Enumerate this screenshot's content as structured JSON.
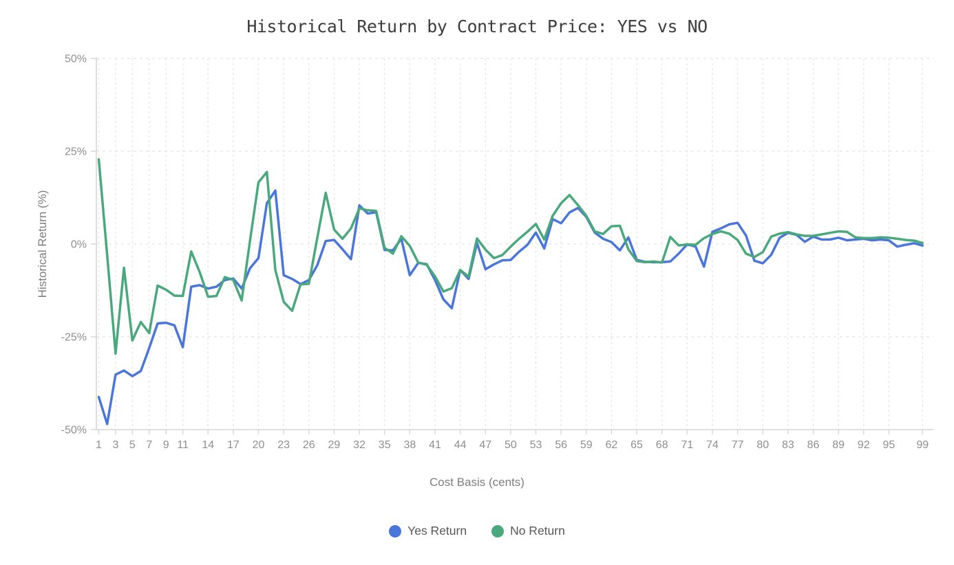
{
  "chart_data": {
    "type": "line",
    "title": "Historical Return by Contract Price: YES vs NO",
    "xlabel": "Cost Basis (cents)",
    "ylabel": "Historical Return (%)",
    "xlim": [
      1,
      99
    ],
    "ylim": [
      -50,
      50
    ],
    "grid": true,
    "legend_position": "bottom",
    "x_tick_labels": [
      1,
      3,
      5,
      7,
      9,
      11,
      14,
      17,
      20,
      23,
      26,
      29,
      32,
      35,
      38,
      41,
      44,
      47,
      50,
      53,
      56,
      59,
      62,
      65,
      68,
      71,
      74,
      77,
      80,
      83,
      86,
      89,
      92,
      95,
      99
    ],
    "y_ticks": [
      {
        "value": 50,
        "label": "50%"
      },
      {
        "value": 25,
        "label": "25%"
      },
      {
        "value": 0,
        "label": "0%"
      },
      {
        "value": -25,
        "label": "-25%"
      },
      {
        "value": -50,
        "label": "-50%"
      }
    ],
    "x": [
      1,
      2,
      3,
      4,
      5,
      6,
      7,
      8,
      9,
      10,
      11,
      12,
      13,
      14,
      15,
      16,
      17,
      18,
      19,
      20,
      21,
      22,
      23,
      24,
      25,
      26,
      27,
      28,
      29,
      30,
      31,
      32,
      33,
      34,
      35,
      36,
      37,
      38,
      39,
      40,
      41,
      42,
      43,
      44,
      45,
      46,
      47,
      48,
      49,
      50,
      51,
      52,
      53,
      54,
      55,
      56,
      57,
      58,
      59,
      60,
      61,
      62,
      63,
      64,
      65,
      66,
      67,
      68,
      69,
      70,
      71,
      72,
      73,
      74,
      75,
      76,
      77,
      78,
      79,
      80,
      81,
      82,
      83,
      84,
      85,
      86,
      87,
      88,
      89,
      90,
      91,
      92,
      93,
      94,
      95,
      96,
      97,
      98,
      99
    ],
    "series": [
      {
        "name": "Yes Return",
        "color": "#4a76db",
        "values": [
          -41.2,
          -48.5,
          -35.2,
          -34.1,
          -35.6,
          -34.2,
          -28.0,
          -21.4,
          -21.2,
          -21.9,
          -27.8,
          -11.5,
          -11.1,
          -12.0,
          -11.5,
          -9.7,
          -9.3,
          -12.0,
          -6.5,
          -3.8,
          11.0,
          14.4,
          -8.4,
          -9.4,
          -10.8,
          -9.7,
          -5.7,
          0.8,
          1.1,
          -1.4,
          -4.1,
          10.4,
          8.2,
          8.6,
          -1.6,
          -1.7,
          1.4,
          -8.4,
          -5.1,
          -5.4,
          -9.7,
          -14.9,
          -17.3,
          -7.0,
          -9.4,
          0.3,
          -6.8,
          -5.5,
          -4.4,
          -4.3,
          -2.1,
          -0.2,
          3.1,
          -1.2,
          6.7,
          5.6,
          8.5,
          9.7,
          7.3,
          3.1,
          1.4,
          0.5,
          -1.7,
          1.8,
          -4.3,
          -4.8,
          -4.9,
          -4.9,
          -4.7,
          -2.6,
          -0.1,
          -0.7,
          -6.1,
          3.3,
          4.2,
          5.3,
          5.7,
          2.3,
          -4.5,
          -5.2,
          -2.9,
          1.7,
          3.0,
          2.5,
          0.6,
          2.0,
          1.2,
          1.2,
          1.7,
          1.0,
          1.2,
          1.4,
          1.0,
          1.2,
          1.0,
          -0.7,
          -0.2,
          0.2,
          -0.4
        ]
      },
      {
        "name": "No Return",
        "color": "#49a97c",
        "values": [
          22.8,
          -3.0,
          -29.5,
          -6.4,
          -26.0,
          -21.0,
          -24.0,
          -11.2,
          -12.3,
          -13.9,
          -14.0,
          -2.0,
          -7.5,
          -14.2,
          -14.0,
          -8.9,
          -9.7,
          -15.2,
          1.0,
          16.6,
          19.4,
          -7.0,
          -15.6,
          -18.0,
          -10.9,
          -10.7,
          1.7,
          13.8,
          3.9,
          1.4,
          4.2,
          9.6,
          9.1,
          8.9,
          -1.0,
          -2.6,
          2.1,
          -0.5,
          -5.0,
          -5.6,
          -8.7,
          -12.8,
          -11.9,
          -7.0,
          -8.8,
          1.5,
          -1.5,
          -3.8,
          -3.0,
          -0.7,
          1.4,
          3.3,
          5.4,
          1.2,
          7.6,
          11.0,
          13.2,
          10.5,
          7.6,
          3.4,
          2.7,
          4.8,
          4.9,
          -1.4,
          -4.6,
          -4.9,
          -4.7,
          -5.0,
          1.9,
          -0.4,
          -0.1,
          -0.2,
          1.6,
          2.7,
          3.4,
          2.8,
          1.1,
          -2.6,
          -3.5,
          -2.2,
          2.0,
          2.8,
          3.2,
          2.6,
          2.2,
          2.2,
          2.6,
          3.0,
          3.4,
          3.3,
          1.8,
          1.6,
          1.6,
          1.8,
          1.7,
          1.4,
          1.1,
          0.9,
          0.25
        ]
      }
    ],
    "colors": {
      "grid": "#e8e8e8",
      "axis_line": "#d6d6d6",
      "tick_text": "#8e8e8e"
    }
  }
}
